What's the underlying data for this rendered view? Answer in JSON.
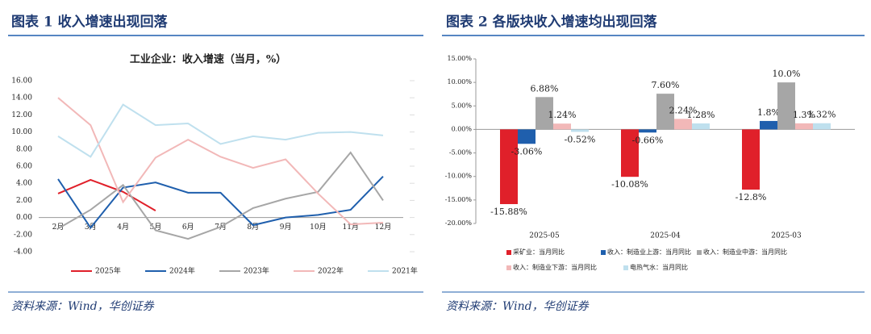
{
  "chart_data": [
    {
      "type": "line",
      "figure_title": "图表 1   收入增速出现回落",
      "source": "资料来源：Wind，华创证券",
      "title": "工业企业：收入增速（当月，%）",
      "categories": [
        "2月",
        "3月",
        "4月",
        "5月",
        "6月",
        "7月",
        "8月",
        "9月",
        "10月",
        "11月",
        "12月"
      ],
      "ylim": [
        -4,
        16
      ],
      "yticks": [
        {
          "value": -4,
          "label": "-4.00"
        },
        {
          "value": -2,
          "label": "-2.00"
        },
        {
          "value": 0,
          "label": "0.00"
        },
        {
          "value": 2,
          "label": "2.00"
        },
        {
          "value": 4,
          "label": "4.00"
        },
        {
          "value": 6,
          "label": "6.00"
        },
        {
          "value": 8,
          "label": "8.00"
        },
        {
          "value": 10,
          "label": "10.00"
        },
        {
          "value": 12,
          "label": "12.00"
        },
        {
          "value": 14,
          "label": "14.00"
        },
        {
          "value": 16,
          "label": "16.00"
        }
      ],
      "series": [
        {
          "name": "2025年",
          "color": "#e0202a",
          "values": [
            2.8,
            4.4,
            3.0,
            0.8,
            null,
            null,
            null,
            null,
            null,
            null,
            null
          ]
        },
        {
          "name": "2024年",
          "color": "#1f5fad",
          "values": [
            4.5,
            -1.2,
            3.5,
            4.1,
            2.9,
            2.9,
            -0.9,
            0.0,
            0.3,
            0.9,
            4.8
          ]
        },
        {
          "name": "2023年",
          "color": "#a6a6a6",
          "values": [
            -1.3,
            0.9,
            3.8,
            -1.5,
            -2.5,
            -1.1,
            1.1,
            2.2,
            3.0,
            7.6,
            2.0
          ]
        },
        {
          "name": "2022年",
          "color": "#f2b8b8",
          "values": [
            14.0,
            10.8,
            1.8,
            7.0,
            9.1,
            7.1,
            5.8,
            6.8,
            2.8,
            -0.8,
            -0.6
          ]
        },
        {
          "name": "2021年",
          "color": "#bfe0ee",
          "values": [
            9.5,
            7.1,
            13.2,
            10.8,
            11.0,
            8.6,
            9.5,
            9.1,
            9.9,
            10.0,
            9.6
          ]
        }
      ]
    },
    {
      "type": "bar",
      "figure_title": "图表 2   各版块收入增速均出现回落",
      "source": "资料来源：Wind，华创证券",
      "categories": [
        "2025-05",
        "2025-04",
        "2025-03"
      ],
      "ylim": [
        -20,
        15
      ],
      "yticks": [
        {
          "value": -20,
          "label": "-20.00%"
        },
        {
          "value": -15,
          "label": "-15.00%"
        },
        {
          "value": -10,
          "label": "-10.00%"
        },
        {
          "value": -5,
          "label": "-5.00%"
        },
        {
          "value": 0,
          "label": "0.00%"
        },
        {
          "value": 5,
          "label": "5.00%"
        },
        {
          "value": 10,
          "label": "10.00%"
        },
        {
          "value": 15,
          "label": "15.00%"
        }
      ],
      "series": [
        {
          "name": "采矿业：当月同比",
          "color": "#e0202a",
          "values": [
            -15.88,
            -10.08,
            -12.8
          ],
          "value_labels": [
            "-15.88%",
            "-10.08%",
            "-12.8%"
          ]
        },
        {
          "name": "收入：制造业上游：当月同比",
          "color": "#1f5fad",
          "values": [
            -3.06,
            -0.66,
            1.8
          ],
          "value_labels": [
            "-3.06%",
            "-0.66%",
            "1.8%"
          ]
        },
        {
          "name": "收入：制造业中游：当月同比",
          "color": "#a6a6a6",
          "values": [
            6.88,
            7.6,
            10.0
          ],
          "value_labels": [
            "6.88%",
            "7.60%",
            "10.0%"
          ]
        },
        {
          "name": "收入：制造业下游：当月同比",
          "color": "#f2b8b8",
          "values": [
            1.24,
            2.24,
            1.3
          ],
          "value_labels": [
            "1.24%",
            "2.24%",
            "1.3%"
          ]
        },
        {
          "name": "电热气水：当月同比",
          "color": "#bfe0ee",
          "values": [
            -0.52,
            1.28,
            1.32
          ],
          "value_labels": [
            "-0.52%",
            "1.28%",
            "1.32%"
          ]
        }
      ]
    }
  ]
}
